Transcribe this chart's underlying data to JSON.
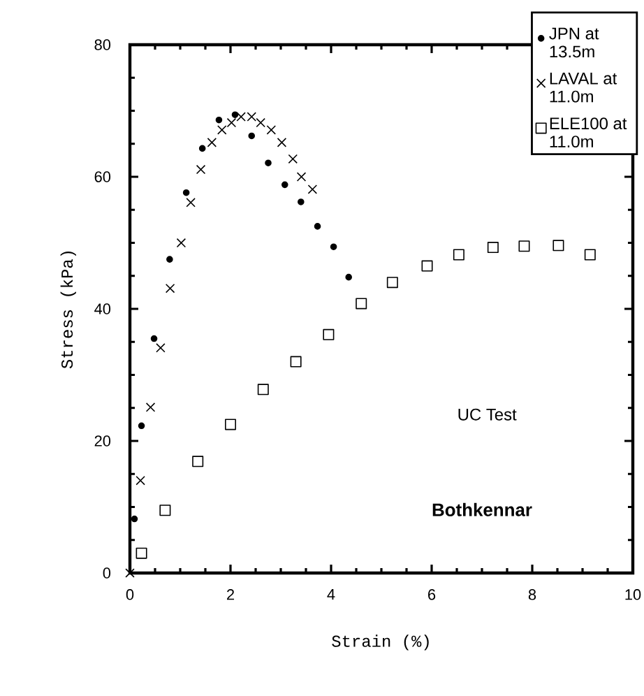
{
  "chart_data": {
    "type": "scatter",
    "xlabel": "Strain (%)",
    "ylabel": "Stress (kPa)",
    "xlim": [
      0,
      10
    ],
    "ylim": [
      0,
      80
    ],
    "xticks": [
      0,
      2,
      4,
      6,
      8,
      10
    ],
    "yticks": [
      0,
      20,
      40,
      60,
      80
    ],
    "legend": "top right",
    "annotations": [
      "UC Test",
      "Bothkennar"
    ],
    "series": [
      {
        "name": "JPN at 13.5m",
        "color": "#000000",
        "marker": "circle",
        "x": [
          0.09,
          0.23,
          0.48,
          0.79,
          1.12,
          1.44,
          1.77,
          2.09,
          2.42,
          2.75,
          3.08,
          3.4,
          3.73,
          4.05,
          4.35
        ],
        "values": [
          8.2,
          22.3,
          35.5,
          47.5,
          57.6,
          64.3,
          68.6,
          69.4,
          66.2,
          62.1,
          58.8,
          56.2,
          52.5,
          49.4,
          44.8
        ]
      },
      {
        "name": "LAVAL at 11.0m",
        "color": "#000000",
        "marker": "cross",
        "x": [
          0,
          0.21,
          0.41,
          0.61,
          0.8,
          1.02,
          1.21,
          1.41,
          1.63,
          1.83,
          2.02,
          2.21,
          2.42,
          2.6,
          2.81,
          3.02,
          3.24,
          3.41,
          3.63
        ],
        "values": [
          0,
          14.0,
          25.1,
          34.1,
          43.1,
          50.0,
          56.1,
          61.1,
          65.2,
          67.1,
          68.2,
          69.1,
          69.1,
          68.2,
          67.1,
          65.2,
          62.7,
          60.0,
          58.1
        ]
      },
      {
        "name": "ELE100 at 11.0m",
        "color": "#000000",
        "marker": "square",
        "x": [
          0.23,
          0.7,
          1.35,
          2.0,
          2.65,
          3.3,
          3.95,
          4.6,
          5.22,
          5.91,
          6.54,
          7.22,
          7.84,
          8.52,
          9.15
        ],
        "values": [
          3.0,
          9.5,
          16.9,
          22.5,
          27.8,
          32.0,
          36.1,
          40.8,
          44.0,
          46.5,
          48.2,
          49.3,
          49.5,
          49.6,
          48.2
        ]
      }
    ]
  }
}
